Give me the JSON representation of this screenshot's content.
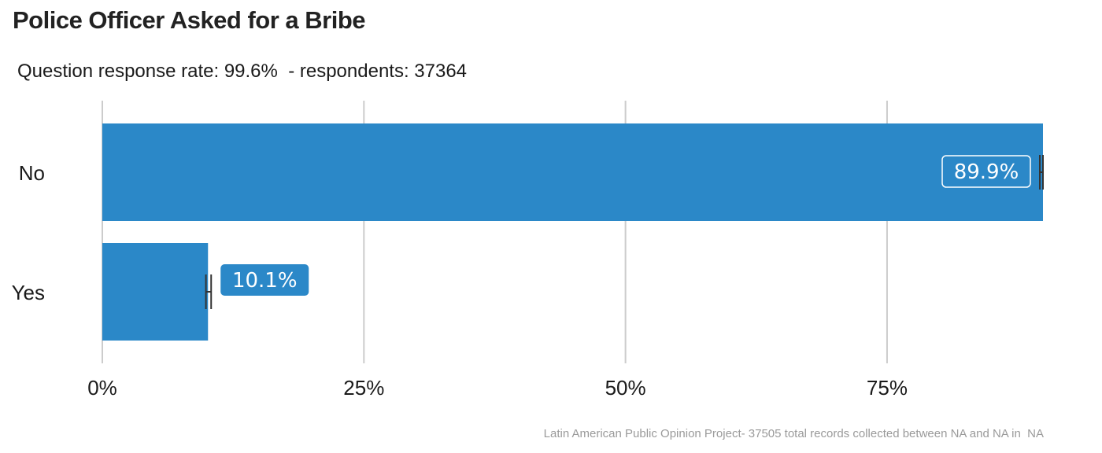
{
  "header": {
    "title": "Police Officer Asked for a Bribe",
    "subtitle": "Question response rate: 99.6%  - respondents: 37364"
  },
  "footer": {
    "caption": "Latin American Public Opinion Project- 37505 total records collected between NA and NA in  NA"
  },
  "colors": {
    "bar": "#2b88c8",
    "grid": "#cccccc",
    "error_bar": "#333333",
    "label_text": "#ffffff"
  },
  "chart_data": {
    "type": "bar",
    "orientation": "horizontal",
    "title": "Police Officer Asked for a Bribe",
    "categories": [
      "No",
      "Yes"
    ],
    "values": [
      89.9,
      10.1
    ],
    "data_labels": [
      "89.9%",
      "10.1%"
    ],
    "error_bars": [
      [
        89.6,
        90.1
      ],
      [
        9.9,
        10.4
      ]
    ],
    "x_ticks": [
      0,
      25,
      50,
      75
    ],
    "x_tick_labels": [
      "0%",
      "25%",
      "50%",
      "75%"
    ],
    "xlim": [
      0,
      89.9
    ],
    "xlabel": "",
    "ylabel": "",
    "grid": "vertical",
    "legend": "none"
  }
}
